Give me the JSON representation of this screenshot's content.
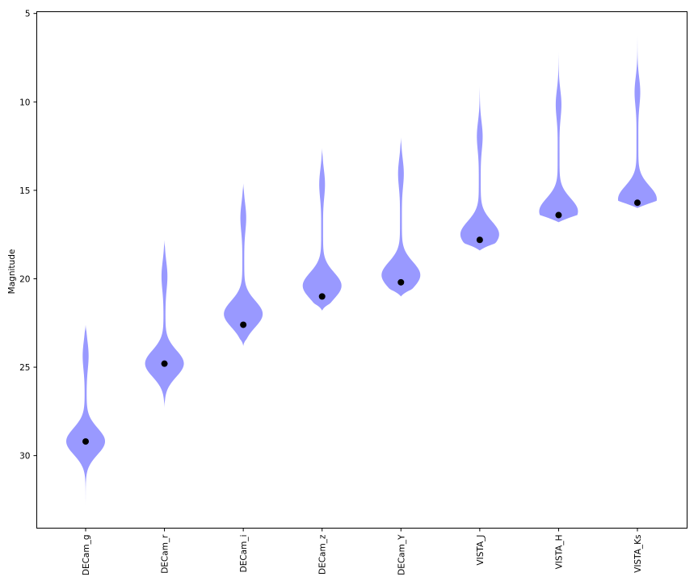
{
  "chart_data": {
    "type": "violin",
    "ylabel": "Magnitude",
    "y_inverted": true,
    "ylim": [
      34.1,
      4.9
    ],
    "yticks": [
      5,
      10,
      15,
      20,
      25,
      30
    ],
    "violin_color": "#9999ff",
    "marker_color": "#000000",
    "categories": [
      "DECam_g",
      "DECam_r",
      "DECam_i",
      "DECam_z",
      "DECam_Y",
      "VISTA_J",
      "VISTA_H",
      "VISTA_Ks"
    ],
    "violins": [
      {
        "name": "DECam_g",
        "min": 22.6,
        "max": 32.8,
        "peak": 29.2,
        "peak_halfwidth": 0.25,
        "upper_bump": 24.3,
        "marker": 29.2
      },
      {
        "name": "DECam_r",
        "min": 17.8,
        "max": 27.3,
        "peak": 24.8,
        "peak_halfwidth": 0.25,
        "upper_bump": 19.8,
        "marker": 24.8
      },
      {
        "name": "DECam_i",
        "min": 14.6,
        "max": 23.8,
        "peak": 22.0,
        "peak_halfwidth": 0.25,
        "upper_bump": 16.5,
        "marker": 22.6
      },
      {
        "name": "DECam_z",
        "min": 12.6,
        "max": 21.8,
        "peak": 20.4,
        "peak_halfwidth": 0.25,
        "upper_bump": 14.6,
        "marker": 21.0
      },
      {
        "name": "DECam_Y",
        "min": 12.0,
        "max": 21.0,
        "peak": 19.8,
        "peak_halfwidth": 0.25,
        "upper_bump": 14.0,
        "marker": 20.2
      },
      {
        "name": "VISTA_J",
        "min": 9.1,
        "max": 18.4,
        "peak": 17.5,
        "peak_halfwidth": 0.25,
        "upper_bump": 11.9,
        "marker": 17.8
      },
      {
        "name": "VISTA_H",
        "min": 7.2,
        "max": 16.8,
        "peak": 16.2,
        "peak_halfwidth": 0.25,
        "upper_bump": 10.1,
        "marker": 16.4
      },
      {
        "name": "VISTA_Ks",
        "min": 6.2,
        "max": 16.0,
        "peak": 15.5,
        "peak_halfwidth": 0.25,
        "upper_bump": 9.4,
        "marker": 15.7
      }
    ]
  }
}
